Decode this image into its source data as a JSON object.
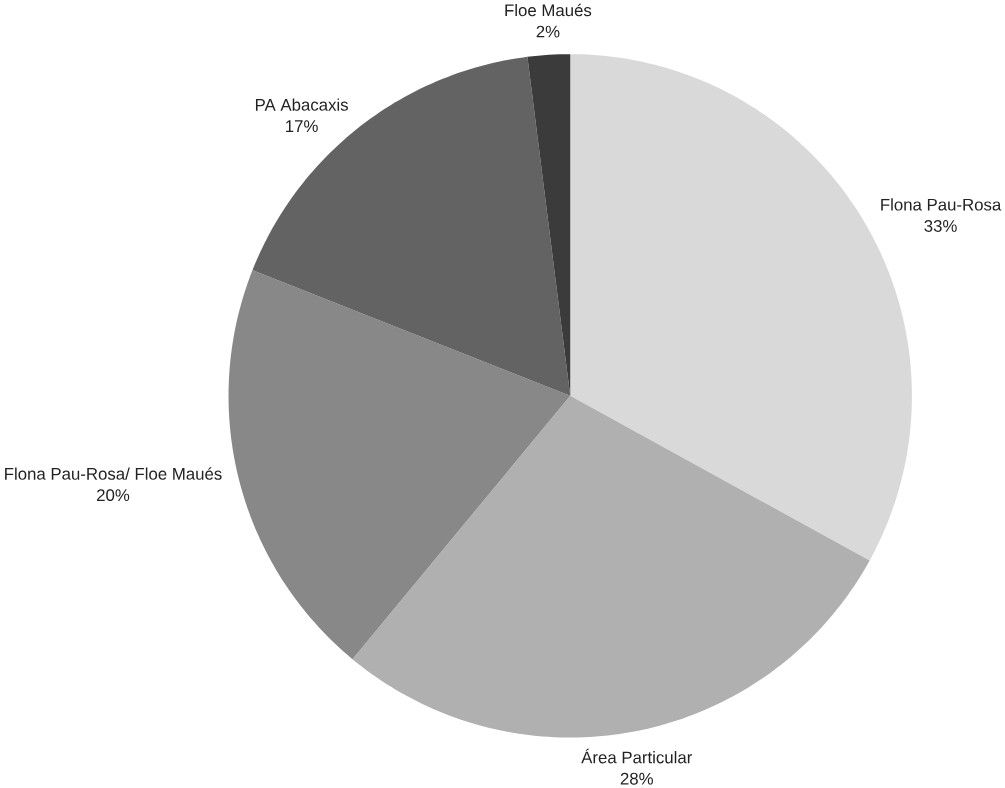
{
  "chart_data": {
    "type": "pie",
    "categories": [
      "Flona Pau-Rosa",
      "Área Particular",
      "Flona Pau-Rosa/ Floe Maués",
      "PA Abacaxis",
      "Floe Maués"
    ],
    "values": [
      33,
      28,
      20,
      17,
      2
    ],
    "value_labels": [
      "33%",
      "28%",
      "20%",
      "17%",
      "2%"
    ],
    "colors": [
      "#d9d9d9",
      "#b0b0b0",
      "#888888",
      "#636363",
      "#3b3b3b"
    ]
  }
}
